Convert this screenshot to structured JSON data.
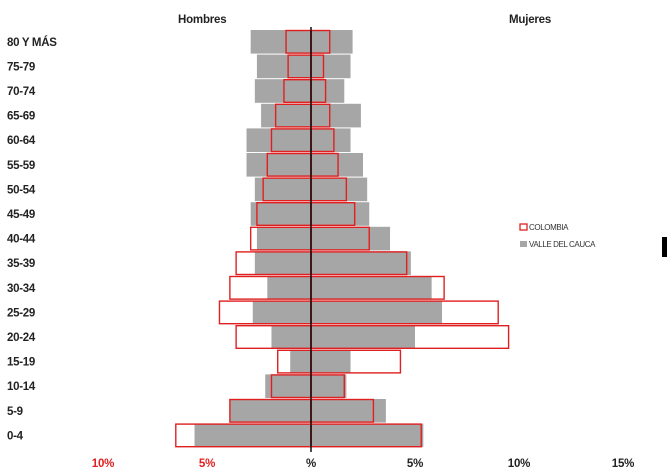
{
  "chart_data": {
    "type": "bar",
    "orientation": "horizontal-population-pyramid",
    "title": "",
    "left_side_label": "Hombres",
    "right_side_label": "Mujeres",
    "categories": [
      "80 Y MÁS",
      "75-79",
      "70-74",
      "65-69",
      "60-64",
      "55-59",
      "50-54",
      "45-49",
      "40-44",
      "35-39",
      "30-34",
      "25-29",
      "20-24",
      "15-19",
      "10-14",
      "5-9",
      "0-4"
    ],
    "x_tick_labels": [
      "10%",
      "5%",
      "%",
      "5%",
      "10%",
      "15%"
    ],
    "x_tick_values": [
      -10,
      -5,
      0,
      5,
      10,
      15
    ],
    "xlim": [
      -10,
      15
    ],
    "x_tick_colors": [
      "#e02020",
      "#e02020",
      "#222222",
      "#222222",
      "#222222",
      "#222222"
    ],
    "grid": false,
    "legend_position": "right",
    "series": [
      {
        "name": "VALLE DEL CAUCA",
        "style": "filled",
        "color": "#a6a6a6",
        "hombres": [
          2.9,
          2.6,
          2.7,
          2.4,
          3.1,
          3.1,
          2.7,
          2.9,
          2.6,
          2.7,
          2.1,
          2.8,
          1.9,
          1.0,
          2.2,
          3.9,
          5.6
        ],
        "mujeres": [
          2.0,
          1.9,
          1.6,
          2.4,
          1.9,
          2.5,
          2.7,
          2.8,
          3.8,
          4.8,
          5.8,
          6.3,
          5.0,
          1.9,
          1.7,
          3.6,
          5.4
        ]
      },
      {
        "name": "COLOMBIA",
        "style": "outline",
        "color": "#e02020",
        "hombres": [
          1.2,
          1.1,
          1.3,
          1.7,
          1.9,
          2.1,
          2.3,
          2.6,
          2.9,
          3.6,
          3.9,
          4.4,
          3.6,
          1.6,
          1.9,
          3.9,
          6.5
        ],
        "mujeres": [
          0.9,
          0.6,
          0.7,
          0.9,
          1.1,
          1.3,
          1.7,
          2.1,
          2.8,
          4.6,
          6.4,
          9.0,
          9.5,
          4.3,
          1.6,
          3.0,
          5.3
        ]
      }
    ]
  }
}
